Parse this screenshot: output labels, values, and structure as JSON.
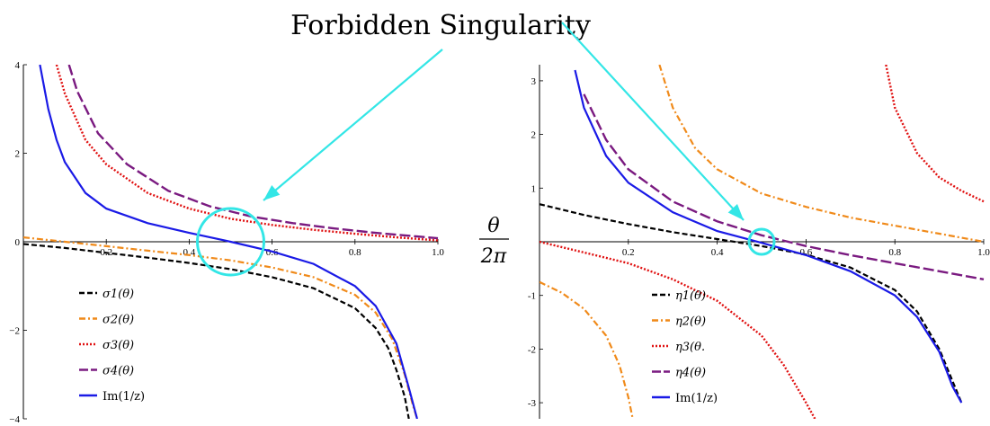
{
  "annotation": {
    "title": "Forbidden Singularity",
    "arrow_color": "#33e6e6"
  },
  "middle_label": {
    "numerator": "θ",
    "denominator": "2π"
  },
  "chart_data": [
    {
      "type": "line",
      "xlim": [
        0.0,
        1.0
      ],
      "ylim": [
        -4,
        4
      ],
      "x_ticks": [
        "0.2",
        "0.4",
        "0.6",
        "0.8",
        "1.0"
      ],
      "y_ticks": [
        "4",
        "2",
        "0",
        "−2",
        "−4"
      ],
      "singularity": {
        "x": 0.5,
        "y": 0.0
      },
      "legend": [
        {
          "label": "σ1(θ)",
          "color": "#000000",
          "dash": "6,3"
        },
        {
          "label": "σ2(θ)",
          "color": "#f08a1a",
          "dash": "7,3,2,3"
        },
        {
          "label": "σ3(θ)",
          "color": "#e01010",
          "dash": "2,2"
        },
        {
          "label": "σ4(θ)",
          "color": "#7a1a80",
          "dash": "12,4"
        },
        {
          "label": "Im(1/z)",
          "color": "#1a1ae6",
          "dash": ""
        }
      ],
      "series": [
        {
          "name": "σ1(θ)",
          "color": "#000000",
          "dash": "6,3",
          "width": 2.2,
          "points": [
            [
              0.0,
              -0.05
            ],
            [
              0.1,
              -0.14
            ],
            [
              0.2,
              -0.25
            ],
            [
              0.3,
              -0.36
            ],
            [
              0.4,
              -0.48
            ],
            [
              0.5,
              -0.62
            ],
            [
              0.6,
              -0.8
            ],
            [
              0.7,
              -1.05
            ],
            [
              0.8,
              -1.5
            ],
            [
              0.85,
              -1.95
            ],
            [
              0.88,
              -2.4
            ],
            [
              0.9,
              -2.9
            ],
            [
              0.92,
              -3.5
            ],
            [
              0.93,
              -4.0
            ]
          ]
        },
        {
          "name": "σ2(θ)",
          "color": "#f08a1a",
          "dash": "7,3,2,3",
          "width": 2.2,
          "points": [
            [
              0.0,
              0.1
            ],
            [
              0.1,
              0.0
            ],
            [
              0.2,
              -0.1
            ],
            [
              0.3,
              -0.2
            ],
            [
              0.4,
              -0.3
            ],
            [
              0.5,
              -0.42
            ],
            [
              0.6,
              -0.58
            ],
            [
              0.7,
              -0.8
            ],
            [
              0.8,
              -1.2
            ],
            [
              0.85,
              -1.6
            ],
            [
              0.89,
              -2.2
            ],
            [
              0.92,
              -3.0
            ],
            [
              0.94,
              -3.7
            ],
            [
              0.95,
              -4.0
            ]
          ]
        },
        {
          "name": "σ3(θ)",
          "color": "#e01010",
          "dash": "2,2",
          "width": 2.4,
          "points": [
            [
              0.08,
              4.0
            ],
            [
              0.1,
              3.35
            ],
            [
              0.15,
              2.3
            ],
            [
              0.2,
              1.75
            ],
            [
              0.3,
              1.1
            ],
            [
              0.4,
              0.75
            ],
            [
              0.5,
              0.52
            ],
            [
              0.6,
              0.38
            ],
            [
              0.7,
              0.27
            ],
            [
              0.8,
              0.18
            ],
            [
              0.9,
              0.1
            ],
            [
              1.0,
              0.03
            ]
          ]
        },
        {
          "name": "σ4(θ)",
          "color": "#7a1a80",
          "dash": "12,4",
          "width": 2.4,
          "points": [
            [
              0.11,
              4.0
            ],
            [
              0.13,
              3.4
            ],
            [
              0.18,
              2.45
            ],
            [
              0.25,
              1.75
            ],
            [
              0.35,
              1.15
            ],
            [
              0.45,
              0.8
            ],
            [
              0.55,
              0.57
            ],
            [
              0.65,
              0.42
            ],
            [
              0.75,
              0.3
            ],
            [
              0.85,
              0.2
            ],
            [
              0.95,
              0.12
            ],
            [
              1.0,
              0.08
            ]
          ]
        },
        {
          "name": "Im(1/z)",
          "color": "#1a1ae6",
          "dash": "",
          "width": 2.2,
          "points": [
            [
              0.04,
              4.0
            ],
            [
              0.06,
              3.0
            ],
            [
              0.08,
              2.3
            ],
            [
              0.1,
              1.8
            ],
            [
              0.15,
              1.1
            ],
            [
              0.2,
              0.75
            ],
            [
              0.3,
              0.42
            ],
            [
              0.4,
              0.2
            ],
            [
              0.5,
              0.0
            ],
            [
              0.6,
              -0.22
            ],
            [
              0.7,
              -0.5
            ],
            [
              0.8,
              -1.0
            ],
            [
              0.85,
              -1.45
            ],
            [
              0.9,
              -2.3
            ],
            [
              0.93,
              -3.3
            ],
            [
              0.95,
              -4.0
            ]
          ]
        }
      ]
    },
    {
      "type": "line",
      "xlim": [
        0.0,
        1.0
      ],
      "ylim": [
        -3.3,
        3.3
      ],
      "x_ticks": [
        "0.2",
        "0.4",
        "0.6",
        "0.8",
        "1.0"
      ],
      "y_ticks": [
        "3",
        "2",
        "1",
        "-1",
        "-2",
        "-3"
      ],
      "singularity": {
        "x": 0.5,
        "y": 0.0
      },
      "legend": [
        {
          "label": "η1(θ)",
          "color": "#000000",
          "dash": "6,3"
        },
        {
          "label": "η2(θ)",
          "color": "#f08a1a",
          "dash": "7,3,2,3"
        },
        {
          "label": "η3(θ.",
          "color": "#e01010",
          "dash": "2,2"
        },
        {
          "label": "η4(θ)",
          "color": "#7a1a80",
          "dash": "12,4"
        },
        {
          "label": "Im(1/z)",
          "color": "#1a1ae6",
          "dash": ""
        }
      ],
      "series": [
        {
          "name": "η1(θ)",
          "color": "#000000",
          "dash": "6,3",
          "width": 2.2,
          "points": [
            [
              0.0,
              0.7
            ],
            [
              0.1,
              0.5
            ],
            [
              0.2,
              0.33
            ],
            [
              0.3,
              0.18
            ],
            [
              0.4,
              0.05
            ],
            [
              0.5,
              -0.08
            ],
            [
              0.6,
              -0.24
            ],
            [
              0.7,
              -0.48
            ],
            [
              0.8,
              -0.9
            ],
            [
              0.85,
              -1.3
            ],
            [
              0.9,
              -2.0
            ],
            [
              0.93,
              -2.6
            ],
            [
              0.95,
              -3.0
            ]
          ]
        },
        {
          "name": "η2(θ) upper",
          "color": "#f08a1a",
          "dash": "7,3,2,3",
          "width": 2.2,
          "points": [
            [
              0.27,
              3.3
            ],
            [
              0.3,
              2.5
            ],
            [
              0.35,
              1.75
            ],
            [
              0.4,
              1.35
            ],
            [
              0.5,
              0.9
            ],
            [
              0.6,
              0.65
            ],
            [
              0.7,
              0.45
            ],
            [
              0.8,
              0.3
            ],
            [
              0.9,
              0.15
            ],
            [
              1.0,
              0.0
            ]
          ]
        },
        {
          "name": "η2(θ) lower",
          "color": "#f08a1a",
          "dash": "7,3,2,3",
          "width": 2.2,
          "points": [
            [
              0.0,
              -0.75
            ],
            [
              0.05,
              -0.95
            ],
            [
              0.1,
              -1.25
            ],
            [
              0.15,
              -1.75
            ],
            [
              0.18,
              -2.3
            ],
            [
              0.2,
              -2.9
            ],
            [
              0.21,
              -3.3
            ]
          ]
        },
        {
          "name": "η3(θ) upper",
          "color": "#e01010",
          "dash": "2,2",
          "width": 2.4,
          "points": [
            [
              0.78,
              3.3
            ],
            [
              0.8,
              2.5
            ],
            [
              0.85,
              1.65
            ],
            [
              0.9,
              1.2
            ],
            [
              0.95,
              0.95
            ],
            [
              1.0,
              0.75
            ]
          ]
        },
        {
          "name": "η3(θ) lower",
          "color": "#e01010",
          "dash": "2,2",
          "width": 2.4,
          "points": [
            [
              0.0,
              0.0
            ],
            [
              0.1,
              -0.2
            ],
            [
              0.2,
              -0.4
            ],
            [
              0.3,
              -0.7
            ],
            [
              0.4,
              -1.1
            ],
            [
              0.5,
              -1.75
            ],
            [
              0.55,
              -2.3
            ],
            [
              0.6,
              -3.0
            ],
            [
              0.62,
              -3.3
            ]
          ]
        },
        {
          "name": "η4(θ)",
          "color": "#7a1a80",
          "dash": "12,4",
          "width": 2.4,
          "points": [
            [
              0.1,
              2.75
            ],
            [
              0.15,
              1.9
            ],
            [
              0.2,
              1.35
            ],
            [
              0.3,
              0.75
            ],
            [
              0.4,
              0.38
            ],
            [
              0.5,
              0.12
            ],
            [
              0.6,
              -0.08
            ],
            [
              0.7,
              -0.25
            ],
            [
              0.8,
              -0.4
            ],
            [
              0.9,
              -0.55
            ],
            [
              1.0,
              -0.7
            ]
          ]
        },
        {
          "name": "Im(1/z)",
          "color": "#1a1ae6",
          "dash": "",
          "width": 2.2,
          "points": [
            [
              0.08,
              3.2
            ],
            [
              0.1,
              2.5
            ],
            [
              0.15,
              1.6
            ],
            [
              0.2,
              1.1
            ],
            [
              0.3,
              0.55
            ],
            [
              0.4,
              0.2
            ],
            [
              0.5,
              -0.02
            ],
            [
              0.6,
              -0.25
            ],
            [
              0.7,
              -0.55
            ],
            [
              0.8,
              -1.0
            ],
            [
              0.85,
              -1.4
            ],
            [
              0.9,
              -2.05
            ],
            [
              0.93,
              -2.7
            ],
            [
              0.95,
              -3.0
            ]
          ]
        }
      ]
    }
  ]
}
